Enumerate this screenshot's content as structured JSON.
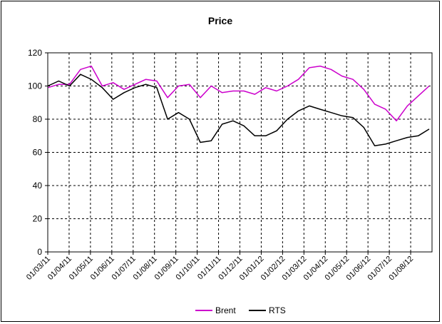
{
  "chart_data": {
    "type": "line",
    "title": "Price",
    "xlabel": "",
    "ylabel": "",
    "ylim": [
      0,
      120
    ],
    "y_ticks": [
      "0",
      "20",
      "40",
      "60",
      "80",
      "100",
      "120"
    ],
    "x_tick_labels": [
      "01/03/11",
      "01/04/11",
      "01/05/11",
      "01/06/11",
      "01/07/11",
      "01/08/11",
      "01/09/11",
      "01/10/11",
      "01/11/11",
      "01/12/11",
      "01/01/12",
      "01/02/12",
      "01/03/12",
      "01/04/12",
      "01/05/12",
      "01/06/12",
      "01/07/12",
      "01/08/12"
    ],
    "grid": true,
    "legend": "bottom",
    "x": [
      "01/03/11",
      "15/03/11",
      "01/04/11",
      "15/04/11",
      "01/05/11",
      "15/05/11",
      "01/06/11",
      "15/06/11",
      "01/07/11",
      "15/07/11",
      "01/08/11",
      "15/08/11",
      "01/09/11",
      "15/09/11",
      "01/10/11",
      "15/10/11",
      "01/11/11",
      "15/11/11",
      "01/12/11",
      "15/12/11",
      "01/01/12",
      "15/01/12",
      "01/02/12",
      "15/02/12",
      "01/03/12",
      "15/03/12",
      "01/04/12",
      "15/04/12",
      "01/05/12",
      "15/05/12",
      "01/06/12",
      "15/06/12",
      "01/07/12",
      "15/07/12",
      "01/08/12",
      "15/08/12"
    ],
    "series": [
      {
        "name": "Brent",
        "color": "#cc00cc",
        "values": [
          99,
          101,
          101,
          110,
          112,
          100,
          102,
          98,
          101,
          104,
          103,
          93,
          100,
          101,
          93,
          100,
          96,
          97,
          97,
          95,
          99,
          97,
          100,
          104,
          111,
          112,
          110,
          106,
          104,
          98,
          89,
          86,
          79,
          88,
          94,
          100
        ]
      },
      {
        "name": "RTS",
        "color": "#000000",
        "values": [
          100,
          103,
          100,
          107,
          104,
          99,
          92,
          96,
          99,
          101,
          99,
          80,
          84,
          80,
          66,
          67,
          77,
          79,
          76,
          70,
          70,
          73,
          80,
          85,
          88,
          86,
          84,
          82,
          81,
          75,
          64,
          65,
          67,
          69,
          70,
          74
        ]
      }
    ]
  }
}
